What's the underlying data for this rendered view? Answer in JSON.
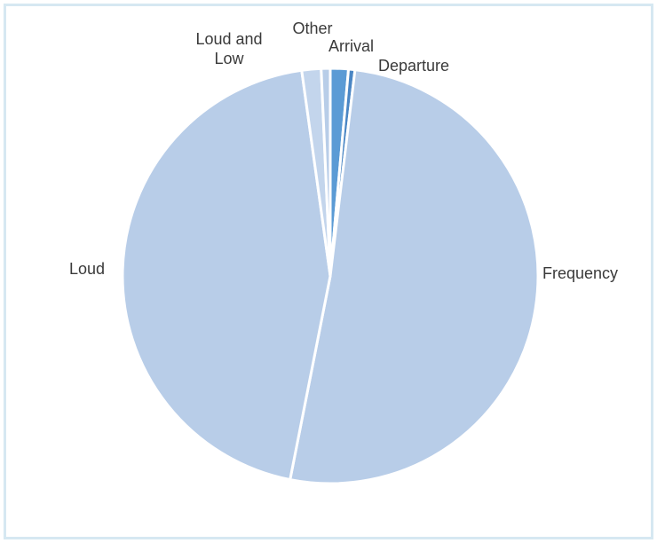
{
  "chart_data": {
    "type": "pie",
    "title": "",
    "slices": [
      {
        "label": "Arrival",
        "value": 1.4,
        "color": "#5b9bd5"
      },
      {
        "label": "Departure",
        "value": 0.5,
        "color": "#4a86c4"
      },
      {
        "label": "Frequency",
        "value": 51.2,
        "color": "#b8cde8"
      },
      {
        "label": "Loud",
        "value": 44.7,
        "color": "#b8cde8"
      },
      {
        "label": "Loud and Low",
        "value": 1.5,
        "color": "#c3d5ec"
      },
      {
        "label": "Other",
        "value": 0.7,
        "color": "#b8cde8"
      }
    ],
    "start_angle_deg": 0,
    "direction": "clockwise",
    "legend": "none",
    "data_labels": "category-outside"
  },
  "colors": {
    "frame_border": "#d6e8f2",
    "slice_separator": "#ffffff",
    "label_text": "#3a3a3a"
  }
}
